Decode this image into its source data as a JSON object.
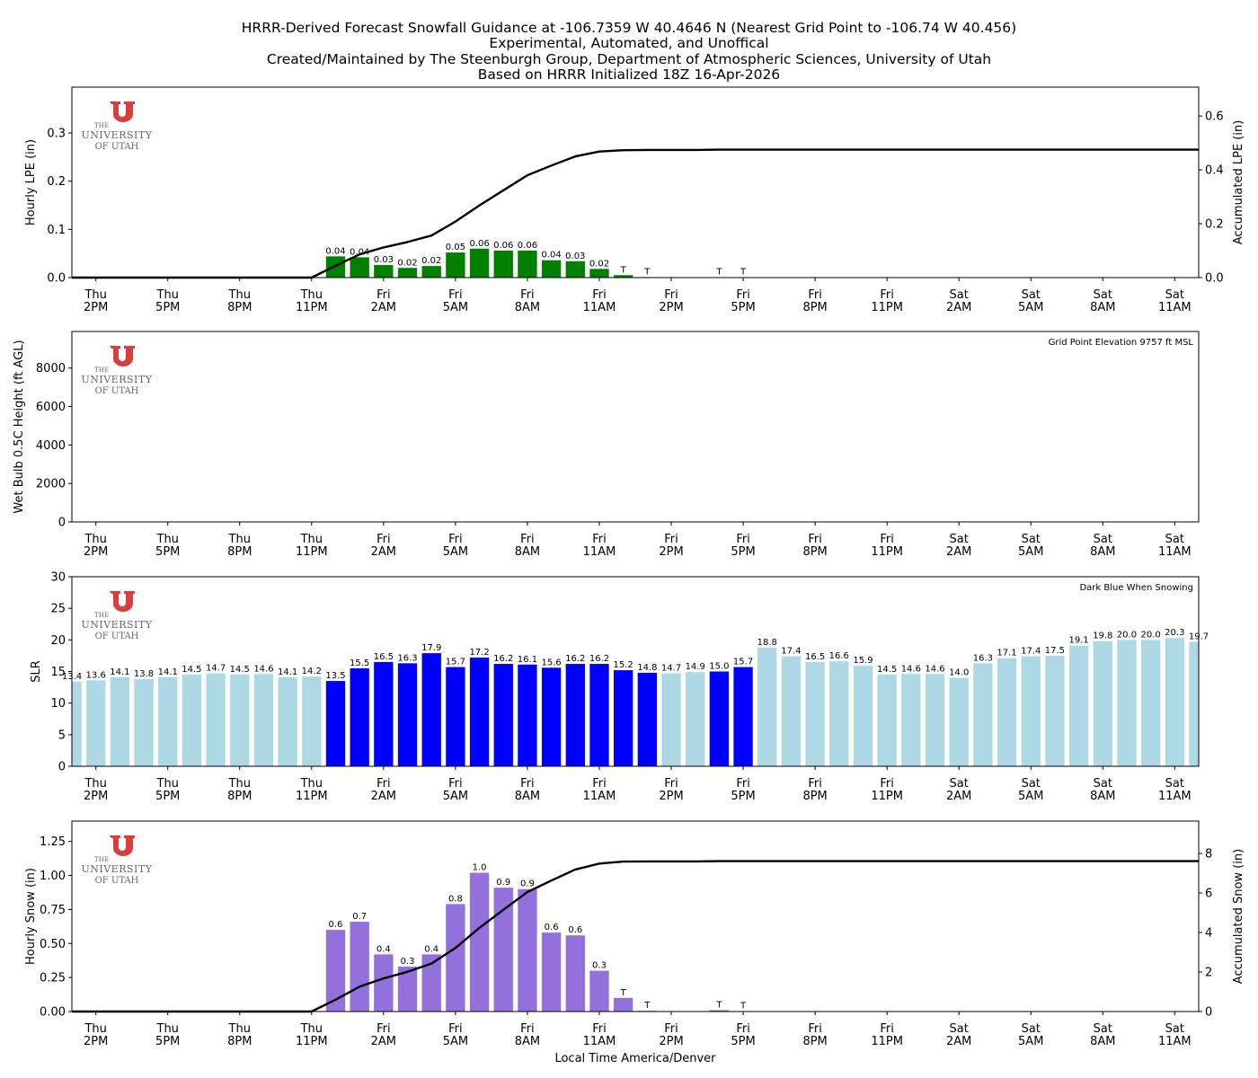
{
  "title_lines": [
    "HRRR-Derived Forecast Snowfall Guidance at -106.7359 W 40.4646 N (Nearest Grid Point to -106.74 W 40.456)",
    "Experimental, Automated, and Unoffical",
    "Created/Maintained by The Steenburgh Group, Department of Atmospheric Sciences, University of Utah",
    "Based on HRRR Initialized 18Z 16-Apr-2026"
  ],
  "logo_text": {
    "line1": "THE",
    "line2": "UNIVERSITY",
    "line3": "OF UTAH"
  },
  "colors": {
    "lpe": "#008000",
    "snowing": "#0000ff",
    "not_snowing": "#add8e6",
    "snow": "#9370db",
    "line": "#000000",
    "logo": "#dc3c3c"
  },
  "chart_data": [
    {
      "type": "bar",
      "ylabel": "Hourly LPE (in)",
      "ylabel_right": "Accumulated LPE (in)",
      "ylim": [
        0,
        0.395
      ],
      "ylim_right": [
        0,
        0.707
      ],
      "yticks": [
        "0.0",
        "0.1",
        "0.2",
        "0.3"
      ],
      "yticks_right": [
        "0.0",
        "0.2",
        "0.4",
        "0.6"
      ],
      "values": [
        0,
        0,
        0,
        0,
        0,
        0,
        0,
        0,
        0,
        0,
        0,
        0.044,
        0.042,
        0.026,
        0.02,
        0.024,
        0.052,
        0.06,
        0.056,
        0.056,
        0.036,
        0.034,
        0.018,
        0.005,
        0.001,
        0,
        0,
        0.0005,
        0.0005,
        0,
        0,
        0,
        0,
        0,
        0,
        0,
        0,
        0,
        0,
        0,
        0,
        0,
        0,
        0,
        0,
        0,
        0,
        0
      ],
      "labels": [
        "",
        "",
        "",
        "",
        "",
        "",
        "",
        "",
        "",
        "",
        "",
        "0.04",
        "0.04",
        "0.03",
        "0.02",
        "0.02",
        "0.05",
        "0.06",
        "0.06",
        "0.06",
        "0.04",
        "0.03",
        "0.02",
        "T",
        "T",
        "",
        "",
        "T",
        "T",
        "",
        "",
        "",
        "",
        "",
        "",
        "",
        "",
        "",
        "",
        "",
        "",
        "",
        "",
        "",
        "",
        "",
        "",
        ""
      ],
      "accumulated": [
        0,
        0,
        0,
        0,
        0,
        0,
        0,
        0,
        0,
        0,
        0,
        0.044,
        0.086,
        0.112,
        0.132,
        0.156,
        0.208,
        0.268,
        0.324,
        0.38,
        0.416,
        0.45,
        0.468,
        0.473,
        0.474,
        0.474,
        0.474,
        0.475,
        0.475,
        0.475,
        0.475,
        0.475,
        0.475,
        0.475,
        0.475,
        0.475,
        0.475,
        0.475,
        0.475,
        0.475,
        0.475,
        0.475,
        0.475,
        0.475,
        0.475,
        0.475,
        0.475,
        0.475
      ]
    },
    {
      "type": "bar",
      "ylabel": "Wet Bulb 0.5C Height (ft AGL)",
      "ylim": [
        0,
        9900
      ],
      "yticks": [
        "0",
        "2000",
        "4000",
        "6000",
        "8000"
      ],
      "annotation": "Grid Point Elevation 9757 ft MSL",
      "values": []
    },
    {
      "type": "bar",
      "ylabel": "SLR",
      "ylim": [
        0,
        30
      ],
      "yticks": [
        "0",
        "5",
        "10",
        "15",
        "20",
        "25",
        "30"
      ],
      "annotation": "Dark Blue When Snowing",
      "values": [
        13.4,
        13.6,
        14.1,
        13.8,
        14.1,
        14.5,
        14.7,
        14.5,
        14.6,
        14.1,
        14.2,
        13.5,
        15.5,
        16.5,
        16.3,
        17.9,
        15.7,
        17.2,
        16.2,
        16.1,
        15.6,
        16.2,
        16.2,
        15.2,
        14.8,
        14.7,
        14.9,
        15.0,
        15.7,
        18.8,
        17.4,
        16.5,
        16.6,
        15.9,
        14.5,
        14.6,
        14.6,
        14.0,
        16.3,
        17.1,
        17.4,
        17.5,
        19.1,
        19.8,
        20.0,
        20.0,
        20.3,
        19.7
      ],
      "snowing": [
        0,
        0,
        0,
        0,
        0,
        0,
        0,
        0,
        0,
        0,
        0,
        1,
        1,
        1,
        1,
        1,
        1,
        1,
        1,
        1,
        1,
        1,
        1,
        1,
        1,
        0,
        0,
        1,
        1,
        0,
        0,
        0,
        0,
        0,
        0,
        0,
        0,
        0,
        0,
        0,
        0,
        0,
        0,
        0,
        0,
        0,
        0,
        0
      ]
    },
    {
      "type": "bar",
      "ylabel": "Hourly Snow (in)",
      "ylabel_right": "Accumulated Snow (in)",
      "xlabel": "Local Time America/Denver",
      "ylim": [
        0,
        1.4
      ],
      "ylim_right": [
        0,
        9.64
      ],
      "yticks": [
        "0.00",
        "0.25",
        "0.50",
        "0.75",
        "1.00",
        "1.25"
      ],
      "yticks_right": [
        "0",
        "2",
        "4",
        "6",
        "8"
      ],
      "values": [
        0,
        0,
        0,
        0,
        0,
        0,
        0,
        0,
        0,
        0,
        0,
        0.6,
        0.66,
        0.42,
        0.33,
        0.42,
        0.79,
        1.02,
        0.91,
        0.9,
        0.58,
        0.56,
        0.3,
        0.1,
        0.005,
        0,
        0,
        0.01,
        0.003,
        0,
        0,
        0,
        0,
        0,
        0,
        0,
        0,
        0,
        0,
        0,
        0,
        0,
        0,
        0,
        0,
        0,
        0,
        0
      ],
      "labels": [
        "",
        "",
        "",
        "",
        "",
        "",
        "",
        "",
        "",
        "",
        "",
        "0.6",
        "0.7",
        "0.4",
        "0.3",
        "0.4",
        "0.8",
        "1.0",
        "0.9",
        "0.9",
        "0.6",
        "0.6",
        "0.3",
        "T",
        "T",
        "",
        "",
        "T",
        "T",
        "",
        "",
        "",
        "",
        "",
        "",
        "",
        "",
        "",
        "",
        "",
        "",
        "",
        "",
        "",
        "",
        "",
        "",
        ""
      ],
      "accumulated": [
        0,
        0,
        0,
        0,
        0,
        0,
        0,
        0,
        0,
        0,
        0,
        0.6,
        1.26,
        1.68,
        2.01,
        2.43,
        3.22,
        4.24,
        5.15,
        6.05,
        6.63,
        7.19,
        7.49,
        7.59,
        7.6,
        7.6,
        7.6,
        7.61,
        7.61,
        7.61,
        7.61,
        7.61,
        7.61,
        7.61,
        7.61,
        7.61,
        7.61,
        7.61,
        7.61,
        7.61,
        7.61,
        7.61,
        7.61,
        7.61,
        7.61,
        7.61,
        7.61,
        7.61
      ]
    }
  ],
  "x_axis": {
    "hours": 48,
    "tick_days": [
      "Thu",
      "Thu",
      "Thu",
      "Thu",
      "Fri",
      "Fri",
      "Fri",
      "Fri",
      "Fri",
      "Fri",
      "Fri",
      "Fri",
      "Sat",
      "Sat",
      "Sat",
      "Sat"
    ],
    "tick_times": [
      "2PM",
      "5PM",
      "8PM",
      "11PM",
      "2AM",
      "5AM",
      "8AM",
      "11AM",
      "2PM",
      "5PM",
      "8PM",
      "11PM",
      "2AM",
      "5AM",
      "8AM",
      "11AM"
    ]
  }
}
